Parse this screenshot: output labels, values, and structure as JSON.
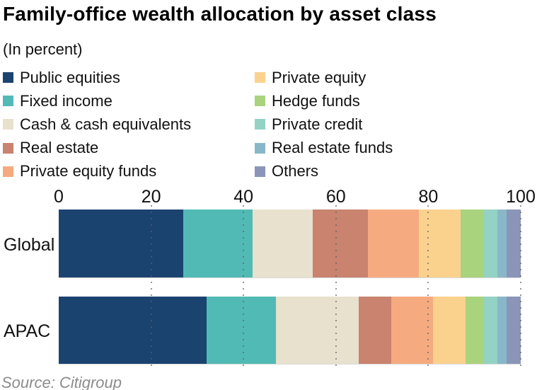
{
  "chart_data": {
    "type": "bar",
    "orientation": "horizontal-stacked",
    "title": "Family-office wealth allocation by asset class",
    "subtitle": "(In percent)",
    "source": "Source: Citigroup",
    "categories": [
      "Global",
      "APAC"
    ],
    "xlim": [
      0,
      100
    ],
    "x_ticks": [
      0,
      20,
      40,
      60,
      80,
      100
    ],
    "grid": "vertical-dotted",
    "legend_position": "top-two-columns",
    "series": [
      {
        "name": "Public equities",
        "color": "#1b4370",
        "values": [
          27,
          32
        ]
      },
      {
        "name": "Fixed income",
        "color": "#52bab5",
        "values": [
          15,
          15
        ]
      },
      {
        "name": "Cash & cash equivalents",
        "color": "#e8e1cd",
        "values": [
          13,
          18
        ]
      },
      {
        "name": "Real estate",
        "color": "#c9836e",
        "values": [
          12,
          7
        ]
      },
      {
        "name": "Private equity funds",
        "color": "#f6aa80",
        "values": [
          11,
          9
        ]
      },
      {
        "name": "Private equity",
        "color": "#fbd18e",
        "values": [
          9,
          7
        ]
      },
      {
        "name": "Hedge funds",
        "color": "#a9d37d",
        "values": [
          5,
          4
        ]
      },
      {
        "name": "Private credit",
        "color": "#93d2c4",
        "values": [
          3,
          3
        ]
      },
      {
        "name": "Real estate funds",
        "color": "#88b8c8",
        "values": [
          2,
          2
        ]
      },
      {
        "name": "Others",
        "color": "#8a95b8",
        "values": [
          3,
          3
        ]
      }
    ]
  }
}
